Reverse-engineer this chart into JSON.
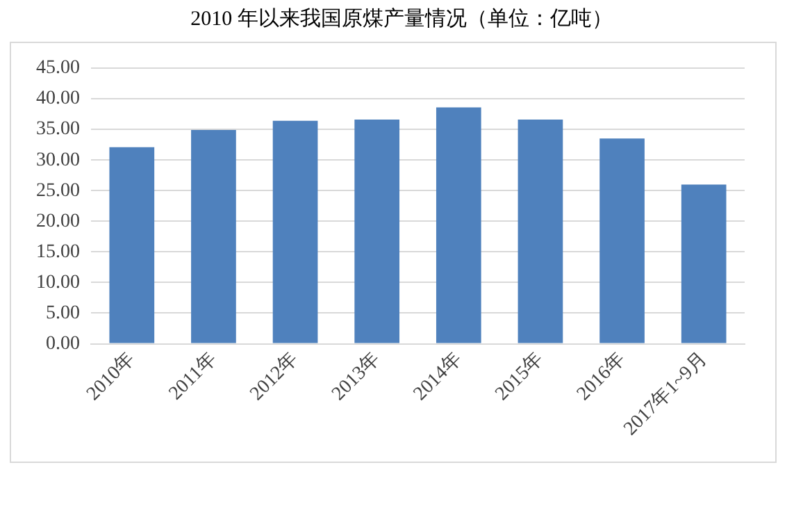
{
  "chart_data": {
    "type": "bar",
    "title": "2010 年以来我国原煤产量情况（单位：亿吨）",
    "categories": [
      "2010年",
      "2011年",
      "2012年",
      "2013年",
      "2014年",
      "2015年",
      "2016年",
      "2017年1~9月"
    ],
    "values": [
      32.1,
      34.9,
      36.4,
      36.6,
      38.6,
      36.6,
      33.5,
      26.0
    ],
    "color": "#4f81bd",
    "ylim": [
      0,
      45
    ],
    "yticks": [
      {
        "value": 0,
        "label": "0.00"
      },
      {
        "value": 5,
        "label": "5.00"
      },
      {
        "value": 10,
        "label": "10.00"
      },
      {
        "value": 15,
        "label": "15.00"
      },
      {
        "value": 20,
        "label": "20.00"
      },
      {
        "value": 25,
        "label": "25.00"
      },
      {
        "value": 30,
        "label": "30.00"
      },
      {
        "value": 35,
        "label": "35.00"
      },
      {
        "value": 40,
        "label": "40.00"
      },
      {
        "value": 45,
        "label": "45.00"
      }
    ],
    "grid": "y",
    "legend": false
  }
}
